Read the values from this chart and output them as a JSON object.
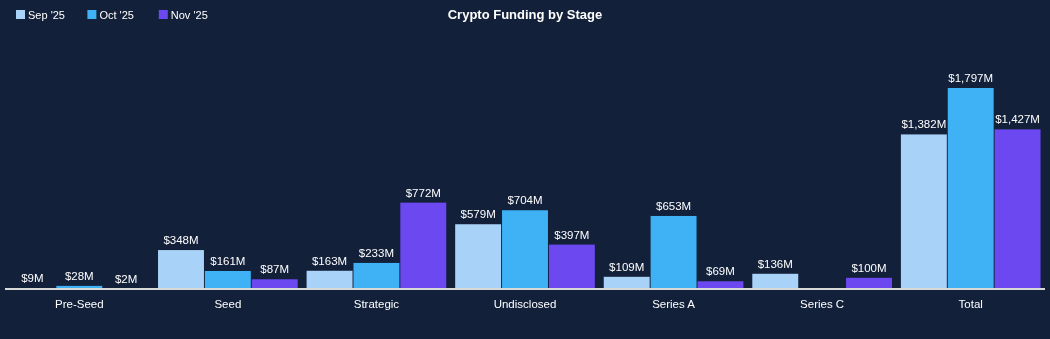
{
  "chart_data": {
    "type": "bar",
    "title": "Crypto Funding by Stage",
    "categories": [
      "Pre-Seed",
      "Seed",
      "Strategic",
      "Undisclosed",
      "Series A",
      "Series C",
      "Total"
    ],
    "legend": "top left",
    "series": [
      {
        "name": "Sep '25",
        "color": "#a9d2f8",
        "values": [
          9,
          348,
          163,
          579,
          109,
          136,
          1382
        ],
        "value_labels": [
          "$9M",
          "$348M",
          "$163M",
          "$579M",
          "$109M",
          "$136M",
          "$1,382M"
        ]
      },
      {
        "name": "Oct '25",
        "color": "#3fb1f5",
        "values": [
          28,
          161,
          233,
          704,
          653,
          null,
          1797
        ],
        "value_labels": [
          "$28M",
          "$161M",
          "$233M",
          "$704M",
          "$653M",
          null,
          "$1,797M"
        ]
      },
      {
        "name": "Nov '25",
        "color": "#6b48f0",
        "values": [
          2,
          87,
          772,
          397,
          69,
          100,
          1427
        ],
        "value_labels": [
          "$2M",
          "$87M",
          "$772M",
          "$397M",
          "$69M",
          "$100M",
          "$1,427M"
        ]
      }
    ]
  }
}
